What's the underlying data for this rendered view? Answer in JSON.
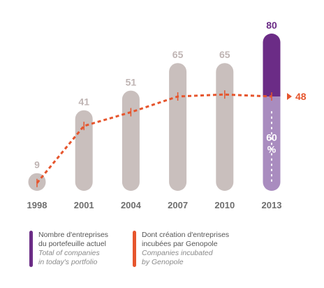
{
  "chart_data": {
    "type": "bar",
    "categories": [
      "1998",
      "2001",
      "2004",
      "2007",
      "2010",
      "2013"
    ],
    "series": [
      {
        "name": "Nombre d'entreprises du portefeuille actuel",
        "type": "bar",
        "values": [
          9,
          41,
          51,
          65,
          65,
          80
        ],
        "labels": [
          "9",
          "41",
          "51",
          "65",
          "65",
          "80"
        ]
      },
      {
        "name": "Dont création d'entreprises incubées par Genopole",
        "type": "line",
        "values": [
          4,
          33,
          40,
          48,
          49,
          48
        ],
        "end_label": "48"
      }
    ],
    "highlight_category": "2013",
    "share_label": {
      "value": "60",
      "unit": "%"
    },
    "colors": {
      "bar": "#c9bfbd",
      "bar_highlight_top": "#6b2c86",
      "bar_highlight_bottom": "#a98cbf",
      "line": "#e6552d"
    },
    "ylim": [
      0,
      80
    ],
    "grid": false,
    "legend_position": "bottom"
  },
  "legend": [
    {
      "color": "#6b2c86",
      "line1": "Nombre d'entreprises",
      "line2": "du portefeuille actuel",
      "line3": "Total of companies",
      "line4": "in today's portfolio"
    },
    {
      "color": "#e6552d",
      "line1": "Dont création d'entreprises",
      "line2": "incubées par Genopole",
      "line3": "Companies incubated",
      "line4": "by Genopole"
    }
  ]
}
